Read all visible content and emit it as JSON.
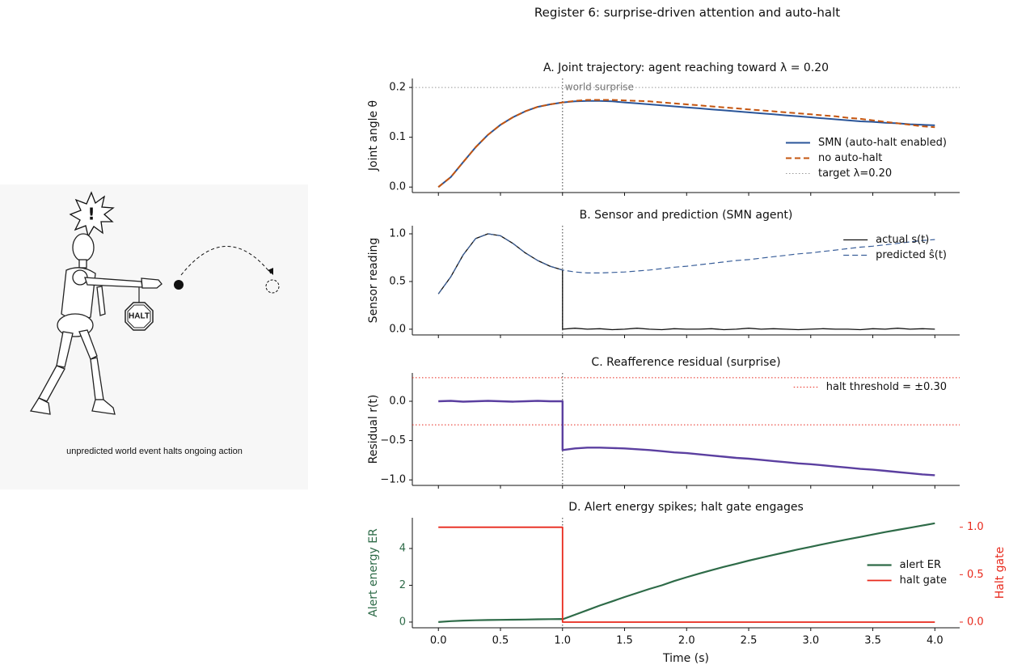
{
  "title": "Register 6: surprise-driven attention and auto-halt",
  "illustration": {
    "alert": "!",
    "sign": "HALT",
    "caption": "unpredicted world event halts ongoing action"
  },
  "chart_data": [
    {
      "type": "line",
      "title": "A. Joint trajectory: agent reaching toward λ = 0.20",
      "ylabel": "Joint angle θ",
      "xlim": [
        -0.21,
        4.2
      ],
      "ylim": [
        -0.011,
        0.218
      ],
      "yticks": [
        {
          "value": 0,
          "label": "0.0"
        },
        0.1,
        0.2
      ],
      "vline": 1.0,
      "annotation": "world surprise",
      "legend": "lower right",
      "hlines": [
        {
          "name": "target λ=0.20",
          "values": [
            0.2
          ],
          "color": "#999999"
        }
      ],
      "x": [
        0,
        0.1,
        0.2,
        0.3,
        0.4,
        0.5,
        0.6,
        0.7,
        0.8,
        0.9,
        1.0,
        1.0,
        1.1,
        1.2,
        1.3,
        1.4,
        1.5,
        1.6,
        1.7,
        1.8,
        1.9,
        2.0,
        2.1,
        2.2,
        2.3,
        2.4,
        2.5,
        2.6,
        2.7,
        2.8,
        2.9,
        3.0,
        3.1,
        3.2,
        3.3,
        3.4,
        3.5,
        3.6,
        3.7,
        3.8,
        3.9,
        4.0
      ],
      "series": [
        {
          "name": "SMN (auto-halt enabled)",
          "color": "#2a5599",
          "dash": "solid",
          "width": 2,
          "values": [
            0,
            0.02,
            0.05,
            0.08,
            0.105,
            0.125,
            0.14,
            0.152,
            0.161,
            0.166,
            0.17,
            0.17,
            0.172,
            0.173,
            0.173,
            0.172,
            0.17,
            0.168,
            0.166,
            0.164,
            0.162,
            0.16,
            0.158,
            0.156,
            0.154,
            0.152,
            0.15,
            0.148,
            0.146,
            0.144,
            0.142,
            0.14,
            0.138,
            0.136,
            0.134,
            0.132,
            0.131,
            0.129,
            0.128,
            0.126,
            0.125,
            0.124
          ]
        },
        {
          "name": "no auto-halt",
          "color": "#c4550f",
          "dash": "dashed",
          "width": 2,
          "values": [
            0,
            0.02,
            0.05,
            0.08,
            0.105,
            0.125,
            0.14,
            0.152,
            0.161,
            0.166,
            0.17,
            0.17,
            0.173,
            0.175,
            0.175,
            0.175,
            0.174,
            0.173,
            0.172,
            0.17,
            0.168,
            0.166,
            0.164,
            0.162,
            0.16,
            0.158,
            0.156,
            0.154,
            0.152,
            0.15,
            0.148,
            0.146,
            0.144,
            0.142,
            0.139,
            0.137,
            0.134,
            0.131,
            0.128,
            0.125,
            0.122,
            0.12
          ]
        }
      ]
    },
    {
      "type": "line",
      "title": "B. Sensor and prediction (SMN agent)",
      "ylabel": "Sensor reading",
      "xlim": [
        -0.21,
        4.2
      ],
      "ylim": [
        -0.06,
        1.085
      ],
      "yticks": [
        {
          "value": 0,
          "label": "0.0"
        },
        0.5,
        {
          "value": 1,
          "label": "1.0"
        }
      ],
      "vline": 1.0,
      "legend": "upper right",
      "x": [
        0,
        0.1,
        0.2,
        0.3,
        0.4,
        0.5,
        0.6,
        0.7,
        0.8,
        0.9,
        1.0,
        1.0,
        1.1,
        1.2,
        1.3,
        1.4,
        1.5,
        1.6,
        1.7,
        1.8,
        1.9,
        2.0,
        2.1,
        2.2,
        2.3,
        2.4,
        2.5,
        2.6,
        2.7,
        2.8,
        2.9,
        3.0,
        3.1,
        3.2,
        3.3,
        3.4,
        3.5,
        3.6,
        3.7,
        3.8,
        3.9,
        4.0
      ],
      "series": [
        {
          "name": "actual s(t)",
          "color": "#111111",
          "dash": "solid",
          "width": 1.3,
          "values": [
            0.37,
            0.55,
            0.78,
            0.95,
            1.0,
            0.98,
            0.9,
            0.8,
            0.72,
            0.66,
            0.62,
            0,
            0.01,
            0,
            0.005,
            -0.005,
            0,
            0.01,
            0,
            -0.005,
            0.005,
            0,
            0,
            0.005,
            -0.005,
            0,
            0.01,
            0,
            0.005,
            0,
            -0.005,
            0,
            0.005,
            0,
            0,
            -0.005,
            0.005,
            0,
            0.01,
            0,
            0.005,
            0
          ]
        },
        {
          "name": "predicted ŝ(t)",
          "color": "#3a5f9a",
          "dash": "dashed",
          "width": 1.2,
          "values": [
            0.37,
            0.55,
            0.78,
            0.95,
            1.0,
            0.98,
            0.9,
            0.8,
            0.72,
            0.66,
            0.62,
            0.62,
            0.6,
            0.59,
            0.59,
            0.595,
            0.6,
            0.61,
            0.62,
            0.635,
            0.65,
            0.66,
            0.675,
            0.69,
            0.705,
            0.72,
            0.73,
            0.745,
            0.76,
            0.775,
            0.79,
            0.8,
            0.815,
            0.83,
            0.845,
            0.86,
            0.87,
            0.885,
            0.9,
            0.915,
            0.93,
            0.94
          ]
        }
      ]
    },
    {
      "type": "line",
      "title": "C. Reafference residual (surprise)",
      "ylabel": "Residual r(t)",
      "xlim": [
        -0.21,
        4.2
      ],
      "ylim": [
        -1.07,
        0.36
      ],
      "yticks": [
        {
          "value": 0,
          "label": "0.0"
        },
        {
          "value": -0.5,
          "label": "−0.5"
        },
        {
          "value": -1,
          "label": "−1.0"
        }
      ],
      "vline": 1.0,
      "legend": "upper right",
      "hlines": [
        {
          "name": "halt threshold = ±0.30",
          "values": [
            0.3,
            -0.3
          ],
          "color": "#e8291c"
        }
      ],
      "x": [
        0,
        0.1,
        0.2,
        0.3,
        0.4,
        0.5,
        0.6,
        0.7,
        0.8,
        0.9,
        1.0,
        1.0,
        1.1,
        1.2,
        1.3,
        1.4,
        1.5,
        1.6,
        1.7,
        1.8,
        1.9,
        2.0,
        2.1,
        2.2,
        2.3,
        2.4,
        2.5,
        2.6,
        2.7,
        2.8,
        2.9,
        3.0,
        3.1,
        3.2,
        3.3,
        3.4,
        3.5,
        3.6,
        3.7,
        3.8,
        3.9,
        4.0
      ],
      "series": [
        {
          "color": "#5b3fa0",
          "dash": "solid",
          "width": 2.4,
          "values": [
            0,
            0.005,
            -0.005,
            0,
            0.005,
            0,
            -0.005,
            0,
            0.005,
            0,
            0,
            -0.62,
            -0.6,
            -0.59,
            -0.59,
            -0.595,
            -0.6,
            -0.61,
            -0.62,
            -0.635,
            -0.65,
            -0.66,
            -0.675,
            -0.69,
            -0.705,
            -0.72,
            -0.73,
            -0.745,
            -0.76,
            -0.775,
            -0.79,
            -0.8,
            -0.815,
            -0.83,
            -0.845,
            -0.86,
            -0.87,
            -0.885,
            -0.9,
            -0.915,
            -0.93,
            -0.94
          ]
        }
      ]
    },
    {
      "type": "line",
      "title": "D. Alert energy spikes; halt gate engages",
      "xlabel": "Time (s)",
      "ylabel": "Alert energy ER",
      "ylabel_color": "#2e6b48",
      "y2label": "Halt gate",
      "y2_color": "#e8291c",
      "xlim": [
        -0.21,
        4.2
      ],
      "ylim": [
        -0.31,
        5.67
      ],
      "yticks": [
        0,
        2,
        4
      ],
      "y2lim": [
        -0.06,
        1.1
      ],
      "y2ticks": [
        {
          "value": 0,
          "label": "0.0"
        },
        0.5,
        {
          "value": 1,
          "label": "1.0"
        }
      ],
      "xticks": [
        {
          "value": 0,
          "label": "0.0"
        },
        0.5,
        {
          "value": 1,
          "label": "1.0"
        },
        1.5,
        {
          "value": 2,
          "label": "2.0"
        },
        2.5,
        {
          "value": 3,
          "label": "3.0"
        },
        3.5,
        {
          "value": 4,
          "label": "4.0"
        }
      ],
      "vline": 1.0,
      "legend": "center right",
      "x": [
        0,
        0.1,
        0.2,
        0.3,
        0.4,
        0.5,
        0.6,
        0.7,
        0.8,
        0.9,
        1.0,
        1.0,
        1.1,
        1.2,
        1.3,
        1.4,
        1.5,
        1.6,
        1.7,
        1.8,
        1.9,
        2.0,
        2.1,
        2.2,
        2.3,
        2.4,
        2.5,
        2.6,
        2.7,
        2.8,
        2.9,
        3.0,
        3.1,
        3.2,
        3.3,
        3.4,
        3.5,
        3.6,
        3.7,
        3.8,
        3.9,
        4.0
      ],
      "series": [
        {
          "name": "alert ER",
          "color": "#2e6b48",
          "dash": "solid",
          "width": 2.2,
          "values": [
            0,
            0.05,
            0.08,
            0.1,
            0.11,
            0.12,
            0.13,
            0.14,
            0.15,
            0.16,
            0.17,
            0.15,
            0.4,
            0.65,
            0.9,
            1.13,
            1.36,
            1.58,
            1.8,
            2.0,
            2.23,
            2.44,
            2.63,
            2.82,
            3.0,
            3.17,
            3.34,
            3.5,
            3.65,
            3.8,
            3.95,
            4.09,
            4.23,
            4.37,
            4.5,
            4.63,
            4.76,
            4.89,
            5.01,
            5.13,
            5.25,
            5.37
          ]
        },
        {
          "name": "halt gate",
          "color": "#e8291c",
          "dash": "solid",
          "width": 1.8,
          "axis": "y2",
          "values": [
            1,
            1,
            1,
            1,
            1,
            1,
            1,
            1,
            1,
            1,
            1,
            0,
            0,
            0,
            0,
            0,
            0,
            0,
            0,
            0,
            0,
            0,
            0,
            0,
            0,
            0,
            0,
            0,
            0,
            0,
            0,
            0,
            0,
            0,
            0,
            0,
            0,
            0,
            0,
            0,
            0,
            0
          ]
        }
      ]
    }
  ]
}
